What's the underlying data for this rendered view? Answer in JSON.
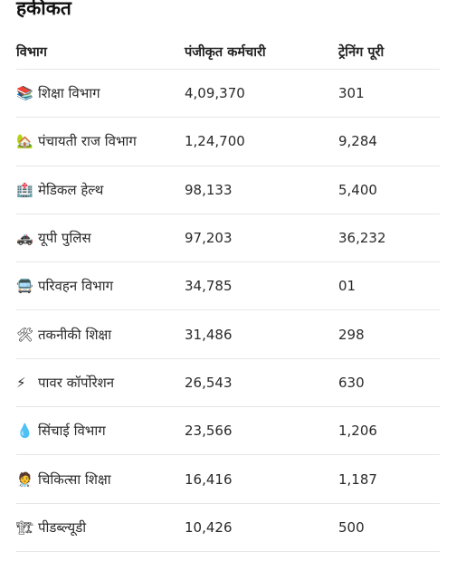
{
  "title": "हकीकत",
  "headers": {
    "department": "विभाग",
    "registered": "पंजीकृत कर्मचारी",
    "training": "ट्रेनिंग पूरी"
  },
  "rows": [
    {
      "icon": "📚",
      "icon_name": "books-icon",
      "department": "शिक्षा विभाग",
      "registered": "4,09,370",
      "training": "301"
    },
    {
      "icon": "🏡",
      "icon_name": "house-garden-icon",
      "department": "पंचायती राज विभाग",
      "registered": "1,24,700",
      "training": "9,284"
    },
    {
      "icon": "🏥",
      "icon_name": "hospital-icon",
      "department": "मेडिकल हेल्थ",
      "registered": "98,133",
      "training": "5,400"
    },
    {
      "icon": "🚓",
      "icon_name": "police-car-icon",
      "department": "यूपी पुलिस",
      "registered": "97,203",
      "training": "36,232"
    },
    {
      "icon": "🚍",
      "icon_name": "bus-icon",
      "department": "परिवहन विभाग",
      "registered": "34,785",
      "training": "01"
    },
    {
      "icon": "🛠",
      "icon_name": "tools-icon",
      "department": "तकनीकी शिक्षा",
      "registered": "31,486",
      "training": "298"
    },
    {
      "icon": "⚡",
      "icon_name": "lightning-icon",
      "department": "पावर कॉर्पोरेशन",
      "registered": "26,543",
      "training": "630"
    },
    {
      "icon": "💧",
      "icon_name": "droplet-icon",
      "department": "सिंचाई विभाग",
      "registered": "23,566",
      "training": "1,206"
    },
    {
      "icon": "🧑‍⚕️",
      "icon_name": "health-worker-icon",
      "department": "चिकित्सा शिक्षा",
      "registered": "16,416",
      "training": "1,187"
    },
    {
      "icon": "🏗",
      "icon_name": "construction-crane-icon",
      "department": "पीडब्ल्यूडी",
      "registered": "10,426",
      "training": "500"
    }
  ]
}
